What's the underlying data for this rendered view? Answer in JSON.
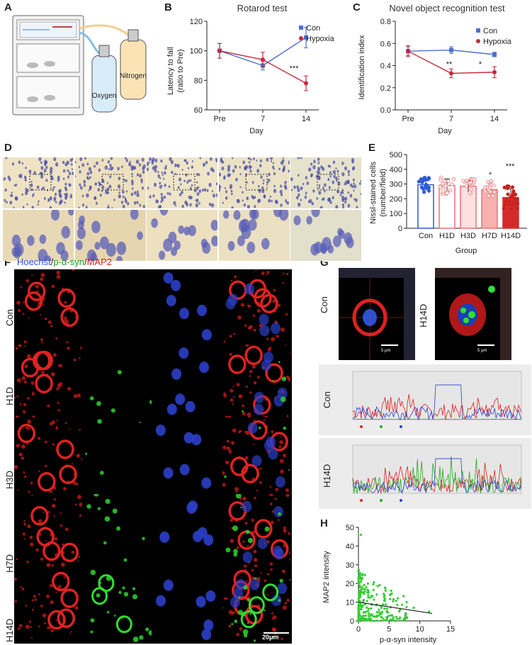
{
  "panels": {
    "A": "A",
    "B": "B",
    "C": "C",
    "D": "D",
    "E": "E",
    "F": "F",
    "G": "G",
    "H": "H"
  },
  "panelA": {
    "oxygen_label": "Oxygen",
    "nitrogen_label": "Nitrogen"
  },
  "panelB": {
    "title": "Rotarod test",
    "ylabel_line1": "Latency to fall",
    "ylabel_line2": "(ratio to Pre)",
    "xlabel": "Day",
    "xticks": [
      "Pre",
      "7",
      "14"
    ],
    "yticks": [
      "60",
      "80",
      "100",
      "120"
    ],
    "legend": [
      "Con",
      "Hypoxia"
    ],
    "sig": "***"
  },
  "panelC": {
    "title": "Novel object recognition test",
    "ylabel": "Identification index",
    "xlabel": "Day",
    "xticks": [
      "Pre",
      "7",
      "14"
    ],
    "yticks": [
      "0.0",
      "0.2",
      "0.4",
      "0.6",
      "0.8"
    ],
    "legend": [
      "Con",
      "Hypoxia"
    ],
    "sig": [
      "**",
      "*"
    ]
  },
  "panelE": {
    "ylabel_line1": "Nissl-stained cells",
    "ylabel_line2": "(number/field)",
    "xlabel": "Group",
    "yticks": [
      "0",
      "100",
      "200",
      "300",
      "400",
      "500"
    ],
    "categories": [
      "Con",
      "H1D",
      "H3D",
      "H7D",
      "H14D"
    ],
    "sig": [
      "*",
      "***"
    ]
  },
  "panelF": {
    "stain_hoechst": "Hoechst",
    "stain_sep1": "/",
    "stain_psyn": "p-α-syn",
    "stain_sep2": "/",
    "stain_map2": "MAP2",
    "rows": [
      "Con",
      "H1D",
      "H3D",
      "H7D",
      "H14D"
    ],
    "scalebar": "20μm"
  },
  "panelG": {
    "con_label": "Con",
    "h14d_label": "H14D",
    "scale": "5 μm"
  },
  "panelH": {
    "ylabel": "MAP2 intensity",
    "xlabel": "p-α-syn intensity",
    "xticks": [
      "0",
      "5",
      "10",
      "15"
    ],
    "yticks": [
      "0",
      "10",
      "20",
      "30",
      "40",
      "50"
    ]
  },
  "chart_data": [
    {
      "type": "line",
      "title": "Rotarod test",
      "xlabel": "Day",
      "ylabel": "Latency to fall (ratio to Pre)",
      "categories": [
        "Pre",
        "7",
        "14"
      ],
      "ylim": [
        60,
        120
      ],
      "series": [
        {
          "name": "Con",
          "color": "#4f6fcf",
          "values": [
            100,
            90,
            109
          ],
          "err": [
            5,
            3,
            7
          ]
        },
        {
          "name": "Hypoxia",
          "color": "#c8283c",
          "values": [
            100,
            94,
            78
          ],
          "err": [
            5,
            5,
            5
          ]
        }
      ]
    },
    {
      "type": "line",
      "title": "Novel object recognition test",
      "xlabel": "Day",
      "ylabel": "Identification index",
      "categories": [
        "Pre",
        "7",
        "14"
      ],
      "ylim": [
        0,
        0.8
      ],
      "series": [
        {
          "name": "Con",
          "color": "#4f6fcf",
          "values": [
            0.53,
            0.54,
            0.5
          ],
          "err": [
            0.04,
            0.03,
            0.02
          ]
        },
        {
          "name": "Hypoxia",
          "color": "#c8283c",
          "values": [
            0.53,
            0.33,
            0.34
          ],
          "err": [
            0.05,
            0.04,
            0.05
          ]
        }
      ]
    },
    {
      "type": "bar",
      "xlabel": "Group",
      "ylabel": "Nissl-stained cells (number/field)",
      "categories": [
        "Con",
        "H1D",
        "H3D",
        "H7D",
        "H14D"
      ],
      "values": [
        295,
        290,
        285,
        262,
        208
      ],
      "err": [
        40,
        45,
        40,
        45,
        60
      ],
      "ylim": [
        0,
        500
      ],
      "colors": [
        "#2d5bd6",
        "#f07070",
        "#f07070",
        "#f07070",
        "#d42a2a"
      ],
      "fills": [
        "#ffffff",
        "#ffffff",
        "#fde0e0",
        "#f7b0b0",
        "#d42a2a"
      ]
    },
    {
      "type": "scatter",
      "xlabel": "p-α-syn intensity",
      "ylabel": "MAP2 intensity",
      "xlim": [
        0,
        15
      ],
      "ylim": [
        0,
        50
      ],
      "color": "#33cc33",
      "fit": {
        "x": [
          0,
          12
        ],
        "y": [
          10,
          4
        ]
      }
    }
  ]
}
